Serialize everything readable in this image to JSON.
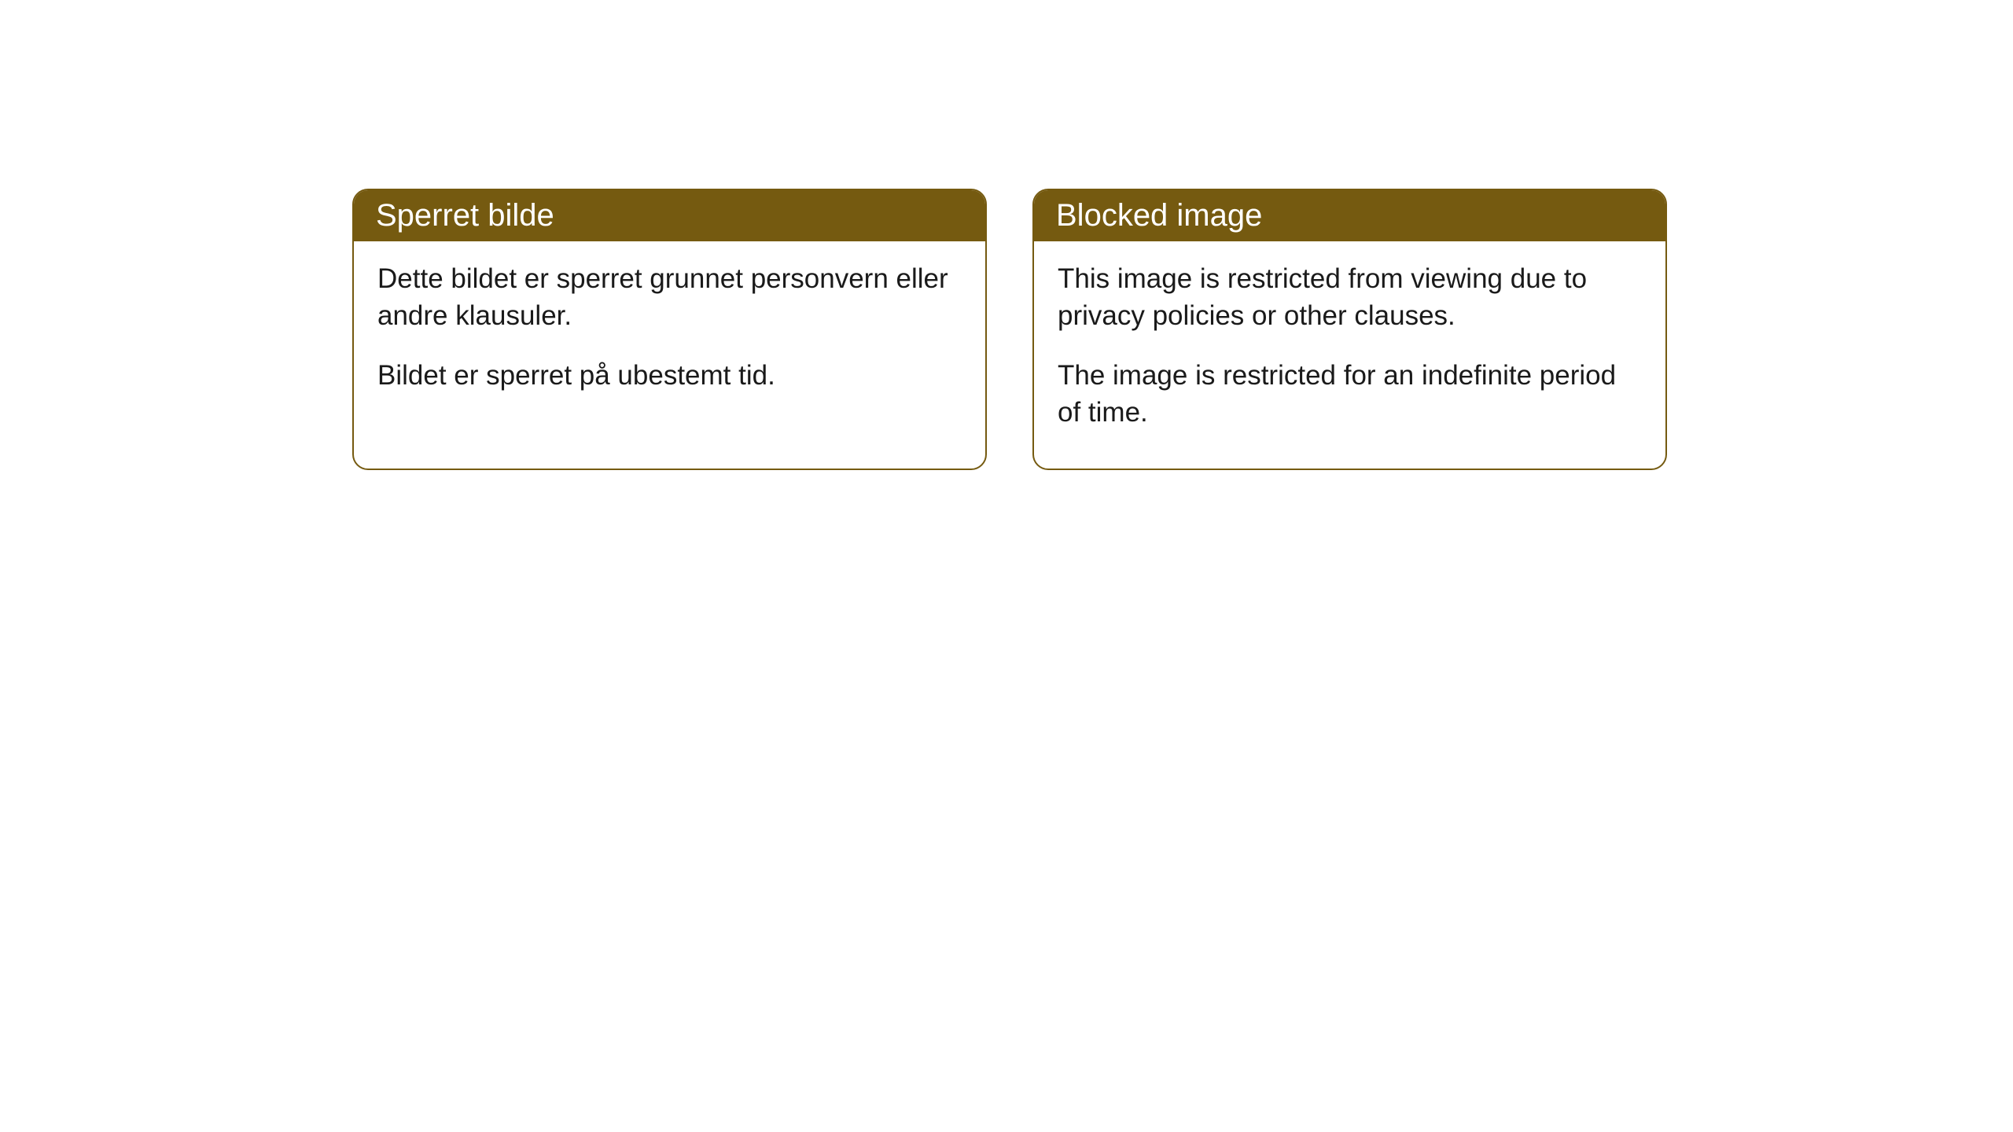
{
  "cards": [
    {
      "title": "Sperret bilde",
      "paragraph1": "Dette bildet er sperret grunnet personvern eller andre klausuler.",
      "paragraph2": "Bildet er sperret på ubestemt tid."
    },
    {
      "title": "Blocked image",
      "paragraph1": "This image is restricted from viewing due to privacy policies or other clauses.",
      "paragraph2": "The image is restricted for an indefinite period of time."
    }
  ],
  "style": {
    "header_background": "#755a10",
    "header_text_color": "#ffffff",
    "border_color": "#755a10",
    "body_background": "#ffffff",
    "body_text_color": "#1a1a1a",
    "border_radius": 20,
    "title_fontsize": 40,
    "body_fontsize": 35
  }
}
